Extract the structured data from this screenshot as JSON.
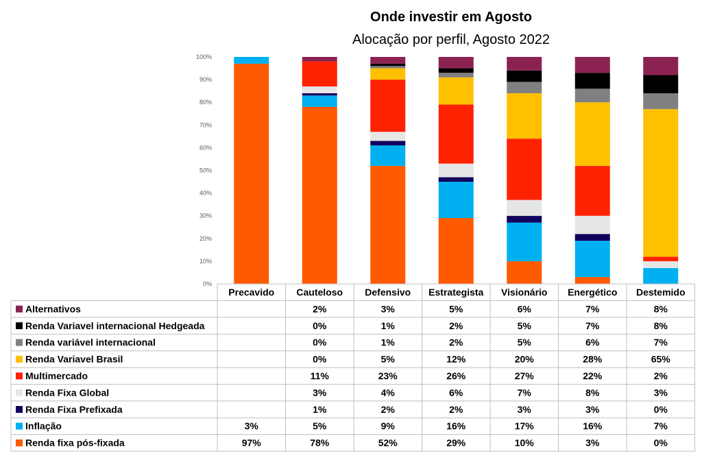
{
  "chart_data": {
    "type": "bar",
    "stacked": true,
    "normalized": true,
    "title": "Onde investir em Agosto",
    "subtitle": "Alocação por perfil, Agosto 2022",
    "categories": [
      "Precavido",
      "Cauteloso",
      "Defensivo",
      "Estrategista",
      "Visionário",
      "Energético",
      "Destemido"
    ],
    "y_ticks": [
      "0%",
      "10%",
      "20%",
      "30%",
      "40%",
      "50%",
      "60%",
      "70%",
      "80%",
      "90%",
      "100%"
    ],
    "ylim": [
      0,
      100
    ],
    "grid": false,
    "legend_placement": "data-table-left",
    "series": [
      {
        "name": "Renda fixa pós-fixada",
        "color": "#FF5A00",
        "values": [
          97,
          78,
          52,
          29,
          10,
          3,
          0
        ],
        "labels": [
          "97%",
          "78%",
          "52%",
          "29%",
          "10%",
          "3%",
          "0%"
        ]
      },
      {
        "name": "Inflação",
        "color": "#00B0F0",
        "values": [
          3,
          5,
          9,
          16,
          17,
          16,
          7
        ],
        "labels": [
          "3%",
          "5%",
          "9%",
          "16%",
          "17%",
          "16%",
          "7%"
        ]
      },
      {
        "name": "Renda Fixa Prefixada",
        "color": "#12005E",
        "values": [
          0,
          1,
          2,
          2,
          3,
          3,
          0
        ],
        "labels": [
          "",
          "1%",
          "2%",
          "2%",
          "3%",
          "3%",
          "0%"
        ]
      },
      {
        "name": "Renda Fixa Global",
        "color": "#E6E6E6",
        "values": [
          0,
          3,
          4,
          6,
          7,
          8,
          3
        ],
        "labels": [
          "",
          "3%",
          "4%",
          "6%",
          "7%",
          "8%",
          "3%"
        ]
      },
      {
        "name": "Multimercado",
        "color": "#FF2200",
        "values": [
          0,
          11,
          23,
          26,
          27,
          22,
          2
        ],
        "labels": [
          "",
          "11%",
          "23%",
          "26%",
          "27%",
          "22%",
          "2%"
        ]
      },
      {
        "name": "Renda Variavel Brasil",
        "color": "#FFC000",
        "values": [
          0,
          0,
          5,
          12,
          20,
          28,
          65
        ],
        "labels": [
          "",
          "0%",
          "5%",
          "12%",
          "20%",
          "28%",
          "65%"
        ]
      },
      {
        "name": "Renda variável internacional",
        "color": "#808080",
        "values": [
          0,
          0,
          1,
          2,
          5,
          6,
          7
        ],
        "labels": [
          "",
          "0%",
          "1%",
          "2%",
          "5%",
          "6%",
          "7%"
        ]
      },
      {
        "name": "Renda Variavel internacional Hedgeada",
        "color": "#000000",
        "values": [
          0,
          0,
          1,
          2,
          5,
          7,
          8
        ],
        "labels": [
          "",
          "0%",
          "1%",
          "2%",
          "5%",
          "7%",
          "8%"
        ]
      },
      {
        "name": "Alternativos",
        "color": "#8B2252",
        "values": [
          0,
          2,
          3,
          5,
          6,
          7,
          8
        ],
        "labels": [
          "",
          "2%",
          "3%",
          "5%",
          "6%",
          "7%",
          "8%"
        ]
      }
    ]
  }
}
